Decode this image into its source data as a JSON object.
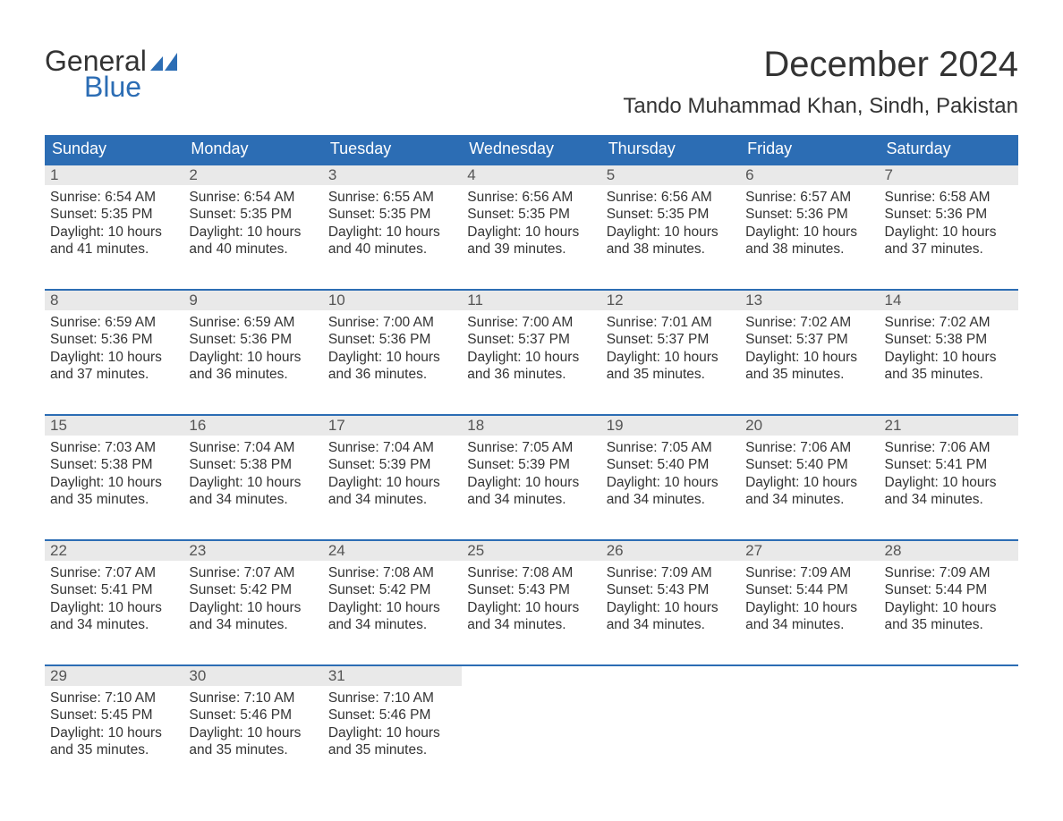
{
  "logo": {
    "word1": "General",
    "word2": "Blue",
    "flag_color": "#2c6db4"
  },
  "title": "December 2024",
  "location": "Tando Muhammad Khan, Sindh, Pakistan",
  "colors": {
    "header_bg": "#2c6db4",
    "header_text": "#ffffff",
    "daynum_bg": "#e9e9e9",
    "daynum_text": "#555555",
    "body_text": "#333333",
    "week_border": "#2c6db4",
    "page_bg": "#ffffff"
  },
  "days_of_week": [
    "Sunday",
    "Monday",
    "Tuesday",
    "Wednesday",
    "Thursday",
    "Friday",
    "Saturday"
  ],
  "weeks": [
    [
      {
        "n": "1",
        "sunrise": "Sunrise: 6:54 AM",
        "sunset": "Sunset: 5:35 PM",
        "d1": "Daylight: 10 hours",
        "d2": "and 41 minutes."
      },
      {
        "n": "2",
        "sunrise": "Sunrise: 6:54 AM",
        "sunset": "Sunset: 5:35 PM",
        "d1": "Daylight: 10 hours",
        "d2": "and 40 minutes."
      },
      {
        "n": "3",
        "sunrise": "Sunrise: 6:55 AM",
        "sunset": "Sunset: 5:35 PM",
        "d1": "Daylight: 10 hours",
        "d2": "and 40 minutes."
      },
      {
        "n": "4",
        "sunrise": "Sunrise: 6:56 AM",
        "sunset": "Sunset: 5:35 PM",
        "d1": "Daylight: 10 hours",
        "d2": "and 39 minutes."
      },
      {
        "n": "5",
        "sunrise": "Sunrise: 6:56 AM",
        "sunset": "Sunset: 5:35 PM",
        "d1": "Daylight: 10 hours",
        "d2": "and 38 minutes."
      },
      {
        "n": "6",
        "sunrise": "Sunrise: 6:57 AM",
        "sunset": "Sunset: 5:36 PM",
        "d1": "Daylight: 10 hours",
        "d2": "and 38 minutes."
      },
      {
        "n": "7",
        "sunrise": "Sunrise: 6:58 AM",
        "sunset": "Sunset: 5:36 PM",
        "d1": "Daylight: 10 hours",
        "d2": "and 37 minutes."
      }
    ],
    [
      {
        "n": "8",
        "sunrise": "Sunrise: 6:59 AM",
        "sunset": "Sunset: 5:36 PM",
        "d1": "Daylight: 10 hours",
        "d2": "and 37 minutes."
      },
      {
        "n": "9",
        "sunrise": "Sunrise: 6:59 AM",
        "sunset": "Sunset: 5:36 PM",
        "d1": "Daylight: 10 hours",
        "d2": "and 36 minutes."
      },
      {
        "n": "10",
        "sunrise": "Sunrise: 7:00 AM",
        "sunset": "Sunset: 5:36 PM",
        "d1": "Daylight: 10 hours",
        "d2": "and 36 minutes."
      },
      {
        "n": "11",
        "sunrise": "Sunrise: 7:00 AM",
        "sunset": "Sunset: 5:37 PM",
        "d1": "Daylight: 10 hours",
        "d2": "and 36 minutes."
      },
      {
        "n": "12",
        "sunrise": "Sunrise: 7:01 AM",
        "sunset": "Sunset: 5:37 PM",
        "d1": "Daylight: 10 hours",
        "d2": "and 35 minutes."
      },
      {
        "n": "13",
        "sunrise": "Sunrise: 7:02 AM",
        "sunset": "Sunset: 5:37 PM",
        "d1": "Daylight: 10 hours",
        "d2": "and 35 minutes."
      },
      {
        "n": "14",
        "sunrise": "Sunrise: 7:02 AM",
        "sunset": "Sunset: 5:38 PM",
        "d1": "Daylight: 10 hours",
        "d2": "and 35 minutes."
      }
    ],
    [
      {
        "n": "15",
        "sunrise": "Sunrise: 7:03 AM",
        "sunset": "Sunset: 5:38 PM",
        "d1": "Daylight: 10 hours",
        "d2": "and 35 minutes."
      },
      {
        "n": "16",
        "sunrise": "Sunrise: 7:04 AM",
        "sunset": "Sunset: 5:38 PM",
        "d1": "Daylight: 10 hours",
        "d2": "and 34 minutes."
      },
      {
        "n": "17",
        "sunrise": "Sunrise: 7:04 AM",
        "sunset": "Sunset: 5:39 PM",
        "d1": "Daylight: 10 hours",
        "d2": "and 34 minutes."
      },
      {
        "n": "18",
        "sunrise": "Sunrise: 7:05 AM",
        "sunset": "Sunset: 5:39 PM",
        "d1": "Daylight: 10 hours",
        "d2": "and 34 minutes."
      },
      {
        "n": "19",
        "sunrise": "Sunrise: 7:05 AM",
        "sunset": "Sunset: 5:40 PM",
        "d1": "Daylight: 10 hours",
        "d2": "and 34 minutes."
      },
      {
        "n": "20",
        "sunrise": "Sunrise: 7:06 AM",
        "sunset": "Sunset: 5:40 PM",
        "d1": "Daylight: 10 hours",
        "d2": "and 34 minutes."
      },
      {
        "n": "21",
        "sunrise": "Sunrise: 7:06 AM",
        "sunset": "Sunset: 5:41 PM",
        "d1": "Daylight: 10 hours",
        "d2": "and 34 minutes."
      }
    ],
    [
      {
        "n": "22",
        "sunrise": "Sunrise: 7:07 AM",
        "sunset": "Sunset: 5:41 PM",
        "d1": "Daylight: 10 hours",
        "d2": "and 34 minutes."
      },
      {
        "n": "23",
        "sunrise": "Sunrise: 7:07 AM",
        "sunset": "Sunset: 5:42 PM",
        "d1": "Daylight: 10 hours",
        "d2": "and 34 minutes."
      },
      {
        "n": "24",
        "sunrise": "Sunrise: 7:08 AM",
        "sunset": "Sunset: 5:42 PM",
        "d1": "Daylight: 10 hours",
        "d2": "and 34 minutes."
      },
      {
        "n": "25",
        "sunrise": "Sunrise: 7:08 AM",
        "sunset": "Sunset: 5:43 PM",
        "d1": "Daylight: 10 hours",
        "d2": "and 34 minutes."
      },
      {
        "n": "26",
        "sunrise": "Sunrise: 7:09 AM",
        "sunset": "Sunset: 5:43 PM",
        "d1": "Daylight: 10 hours",
        "d2": "and 34 minutes."
      },
      {
        "n": "27",
        "sunrise": "Sunrise: 7:09 AM",
        "sunset": "Sunset: 5:44 PM",
        "d1": "Daylight: 10 hours",
        "d2": "and 34 minutes."
      },
      {
        "n": "28",
        "sunrise": "Sunrise: 7:09 AM",
        "sunset": "Sunset: 5:44 PM",
        "d1": "Daylight: 10 hours",
        "d2": "and 35 minutes."
      }
    ],
    [
      {
        "n": "29",
        "sunrise": "Sunrise: 7:10 AM",
        "sunset": "Sunset: 5:45 PM",
        "d1": "Daylight: 10 hours",
        "d2": "and 35 minutes."
      },
      {
        "n": "30",
        "sunrise": "Sunrise: 7:10 AM",
        "sunset": "Sunset: 5:46 PM",
        "d1": "Daylight: 10 hours",
        "d2": "and 35 minutes."
      },
      {
        "n": "31",
        "sunrise": "Sunrise: 7:10 AM",
        "sunset": "Sunset: 5:46 PM",
        "d1": "Daylight: 10 hours",
        "d2": "and 35 minutes."
      },
      null,
      null,
      null,
      null
    ]
  ]
}
